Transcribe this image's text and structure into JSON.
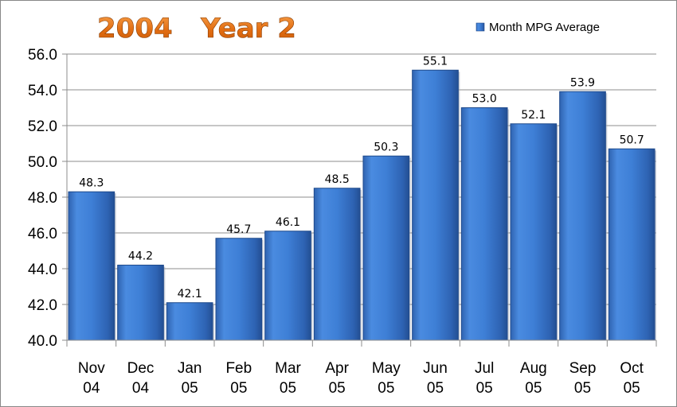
{
  "chart_data": {
    "type": "bar",
    "title": "2004   Year 2",
    "categories": [
      [
        "Nov",
        "04"
      ],
      [
        "Dec",
        "04"
      ],
      [
        "Jan",
        "05"
      ],
      [
        "Feb",
        "05"
      ],
      [
        "Mar",
        "05"
      ],
      [
        "Apr",
        "05"
      ],
      [
        "May",
        "05"
      ],
      [
        "Jun",
        "05"
      ],
      [
        "Jul",
        "05"
      ],
      [
        "Aug",
        "05"
      ],
      [
        "Sep",
        "05"
      ],
      [
        "Oct",
        "05"
      ]
    ],
    "series": [
      {
        "name": "Month MPG Average",
        "values": [
          48.3,
          44.2,
          42.1,
          45.7,
          46.1,
          48.5,
          50.3,
          55.1,
          53.0,
          52.1,
          53.9,
          50.7
        ],
        "color": "#3a78cc"
      }
    ],
    "ylim": [
      40.0,
      56.0
    ],
    "yticks": [
      "40.0",
      "42.0",
      "44.0",
      "46.0",
      "48.0",
      "50.0",
      "52.0",
      "54.0",
      "56.0"
    ],
    "grid": true,
    "legend": "top-right",
    "title_color": "#e8741c"
  }
}
